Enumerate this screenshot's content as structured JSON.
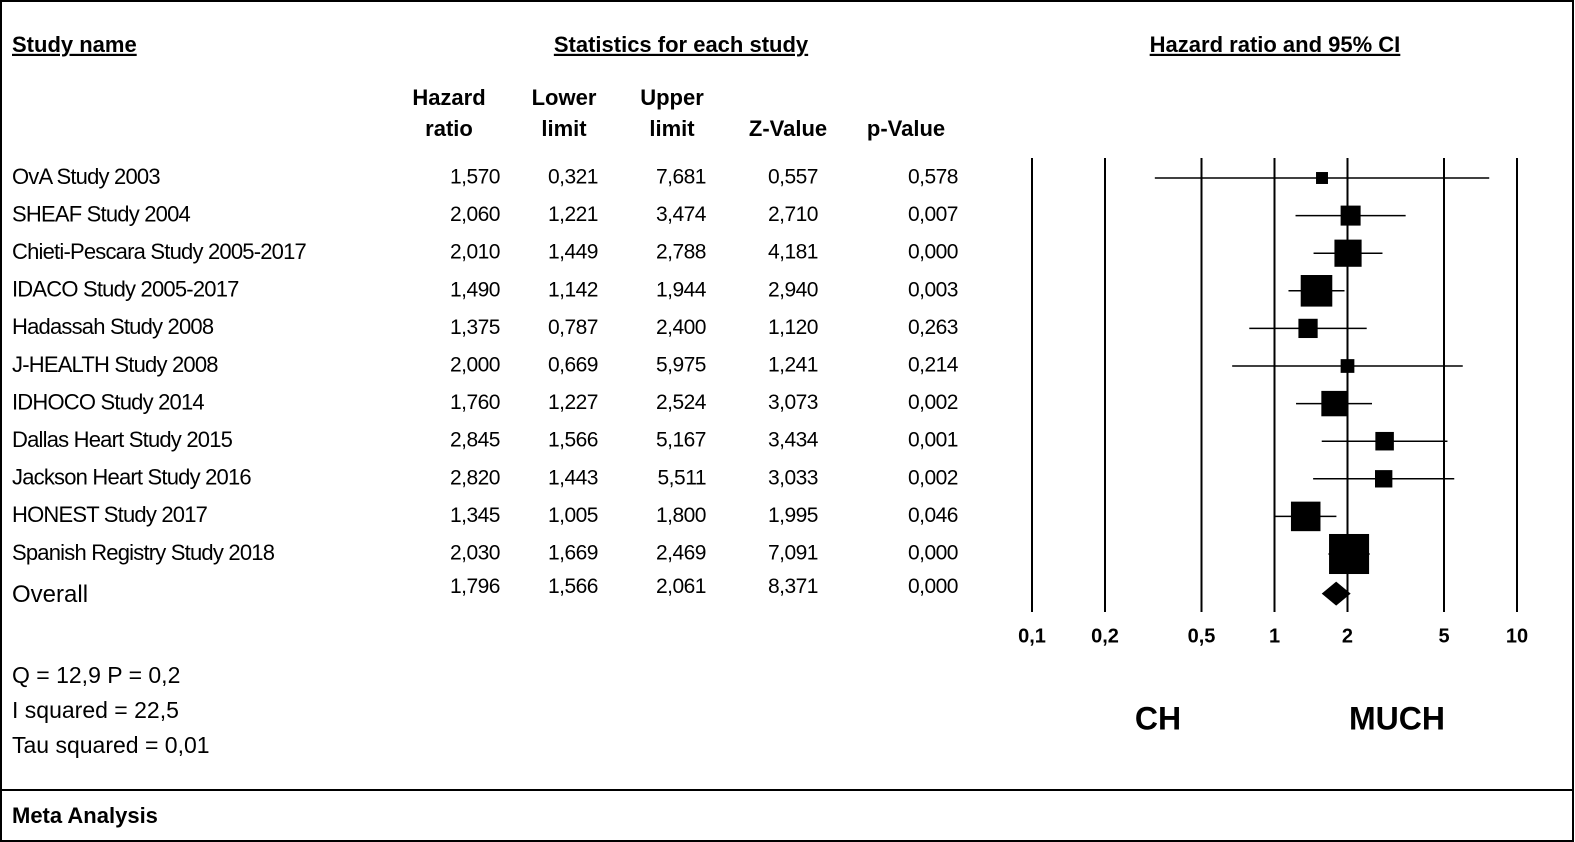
{
  "chart_data": {
    "type": "forest",
    "name_header": "Study name",
    "section_title": "Statistics for each study",
    "title": "Hazard ratio and 95% CI",
    "categories": [
      "OvA Study 2003",
      "SHEAF Study 2004",
      "Chieti-Pescara Study 2005-2017",
      "IDACO Study 2005-2017",
      "Hadassah Study 2008",
      "J-HEALTH Study 2008",
      "IDHOCO Study 2014",
      "Dallas Heart Study 2015",
      "Jackson Heart Study 2016",
      "HONEST Study 2017",
      "Spanish Registry Study 2018",
      "Overall"
    ],
    "series": [
      {
        "name": "Hazard ratio",
        "values": [
          1.57,
          2.06,
          2.01,
          1.49,
          1.375,
          2.0,
          1.76,
          2.845,
          2.82,
          1.345,
          2.03,
          1.796
        ],
        "value_labels": [
          "1,570",
          "2,060",
          "2,010",
          "1,490",
          "1,375",
          "2,000",
          "1,760",
          "2,845",
          "2,820",
          "1,345",
          "2,030",
          "1,796"
        ]
      },
      {
        "name": "Lower limit",
        "values": [
          0.321,
          1.221,
          1.449,
          1.142,
          0.787,
          0.669,
          1.227,
          1.566,
          1.443,
          1.005,
          1.669,
          1.566
        ],
        "value_labels": [
          "0,321",
          "1,221",
          "1,449",
          "1,142",
          "0,787",
          "0,669",
          "1,227",
          "1,566",
          "1,443",
          "1,005",
          "1,669",
          "1,566"
        ]
      },
      {
        "name": "Upper limit",
        "values": [
          7.681,
          3.474,
          2.788,
          1.944,
          2.4,
          5.975,
          2.524,
          5.167,
          5.511,
          1.8,
          2.469,
          2.061
        ],
        "value_labels": [
          "7,681",
          "3,474",
          "2,788",
          "1,944",
          "2,400",
          "5,975",
          "2,524",
          "5,167",
          "5,511",
          "1,800",
          "2,469",
          "2,061"
        ]
      },
      {
        "name": "Z-Value",
        "values": [
          0.557,
          2.71,
          4.181,
          2.94,
          1.12,
          1.241,
          3.073,
          3.434,
          3.033,
          1.995,
          7.091,
          8.371
        ],
        "value_labels": [
          "0,557",
          "2,710",
          "4,181",
          "2,940",
          "1,120",
          "1,241",
          "3,073",
          "3,434",
          "3,033",
          "1,995",
          "7,091",
          "8,371"
        ]
      },
      {
        "name": "p-Value",
        "values": [
          0.578,
          0.007,
          0.0,
          0.003,
          0.263,
          0.214,
          0.002,
          0.001,
          0.002,
          0.046,
          0.0,
          0.0
        ],
        "value_labels": [
          "0,578",
          "0,007",
          "0,000",
          "0,003",
          "0,263",
          "0,214",
          "0,002",
          "0,001",
          "0,002",
          "0,046",
          "0,000",
          "0,000"
        ]
      }
    ],
    "color": "#000000",
    "log_scale": true,
    "xlim": [
      0.1,
      10
    ],
    "xticks": [
      {
        "value": 0.1,
        "label": "0,1"
      },
      {
        "value": 0.2,
        "label": "0,2"
      },
      {
        "value": 0.5,
        "label": "0,5"
      },
      1,
      2,
      5,
      10
    ],
    "left_label": "CH",
    "right_label": "MUCH",
    "stats": [
      "Q = 12,9  P = 0,2",
      "I squared = 22,5",
      "Tau squared = 0,01"
    ],
    "footer": "Meta Analysis"
  }
}
